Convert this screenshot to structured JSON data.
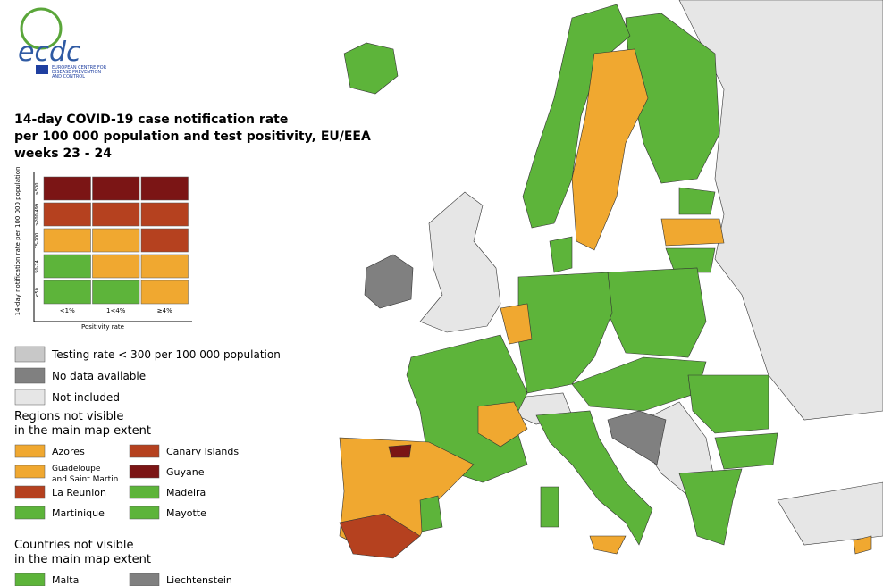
{
  "logo": {
    "name": "ecdc",
    "org": [
      "EUROPEAN CENTRE FOR",
      "DISEASE PREVENTION",
      "AND CONTROL"
    ]
  },
  "title": [
    "14-day COVID-19 case notification rate",
    "per 100 000 population and test positivity, EU/EEA",
    "weeks 23 - 24"
  ],
  "matrix": {
    "y_label": "14-day notification rate per 100 000 population",
    "x_label": "Positivity rate",
    "rows": [
      "≥500",
      ">200-499",
      "75-200",
      "50-74",
      "<50"
    ],
    "columns": [
      "<1%",
      "1<4%",
      "≥4%"
    ],
    "cells": [
      [
        "#7b1515",
        "#7b1515",
        "#7b1515"
      ],
      [
        "#b5411f",
        "#b5411f",
        "#b5411f"
      ],
      [
        "#f0a830",
        "#f0a830",
        "#b5411f"
      ],
      [
        "#5db43a",
        "#f0a830",
        "#f0a830"
      ],
      [
        "#5db43a",
        "#5db43a",
        "#f0a830"
      ]
    ]
  },
  "legend": [
    {
      "label": "Testing rate < 300 per 100 000 population",
      "color": "#c8c8c8"
    },
    {
      "label": "No data available",
      "color": "#808080"
    },
    {
      "label": "Not included",
      "color": "#e6e6e6"
    }
  ],
  "regions": {
    "heading": [
      "Regions not visible",
      "in the main map extent"
    ],
    "items": [
      {
        "label": [
          "Azores"
        ],
        "color": "#f0a830"
      },
      {
        "label": [
          "Canary Islands"
        ],
        "color": "#b5411f"
      },
      {
        "label": [
          "Guadeloupe",
          "and Saint Martin"
        ],
        "color": "#f0a830"
      },
      {
        "label": [
          "Guyane"
        ],
        "color": "#7b1515"
      },
      {
        "label": [
          "La Reunion"
        ],
        "color": "#b5411f"
      },
      {
        "label": [
          "Madeira"
        ],
        "color": "#5db43a"
      },
      {
        "label": [
          "Martinique"
        ],
        "color": "#5db43a"
      },
      {
        "label": [
          "Mayotte"
        ],
        "color": "#5db43a"
      }
    ]
  },
  "countries": {
    "heading": [
      "Countries not visible",
      "in the main map extent"
    ],
    "items": [
      {
        "label": [
          "Malta"
        ],
        "color": "#5db43a"
      },
      {
        "label": [
          "Liechtenstein"
        ],
        "color": "#808080"
      }
    ]
  }
}
